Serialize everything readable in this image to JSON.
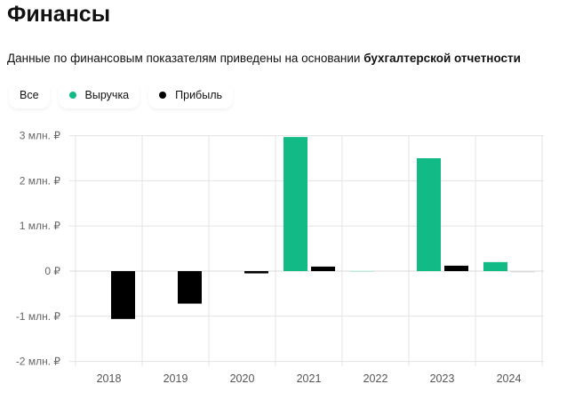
{
  "title": "Финансы",
  "subtitle": {
    "text": "Данные по финансовым показателям приведены на основании ",
    "bold": "бухгалтерской отчетности"
  },
  "filters": [
    {
      "label": "Все"
    },
    {
      "label": "Выручка",
      "color": "#12bb86"
    },
    {
      "label": "Прибыль",
      "color": "#000000"
    }
  ],
  "chart_data": {
    "type": "bar",
    "categories": [
      "2018",
      "2019",
      "2020",
      "2021",
      "2022",
      "2023",
      "2024"
    ],
    "series": [
      {
        "name": "Выручка",
        "color": "#12bb86",
        "values": [
          0,
          0,
          0,
          2.97,
          0.01,
          2.5,
          0.2
        ]
      },
      {
        "name": "Прибыль",
        "color": "#000000",
        "values": [
          -1.06,
          -0.72,
          -0.05,
          0.1,
          0,
          0.12,
          -0.01
        ]
      }
    ],
    "yticks": [
      {
        "v": 3,
        "label": "3 млн. ₽"
      },
      {
        "v": 2,
        "label": "2 млн. ₽"
      },
      {
        "v": 1,
        "label": "1 млн. ₽"
      },
      {
        "v": 0,
        "label": "0 ₽"
      },
      {
        "v": -1,
        "label": "-1 млн. ₽"
      },
      {
        "v": -2,
        "label": "-2 млн. ₽"
      }
    ],
    "ylim": [
      -2,
      3
    ],
    "ylabel": "млн. ₽",
    "grid": true,
    "legend": "top-left"
  }
}
